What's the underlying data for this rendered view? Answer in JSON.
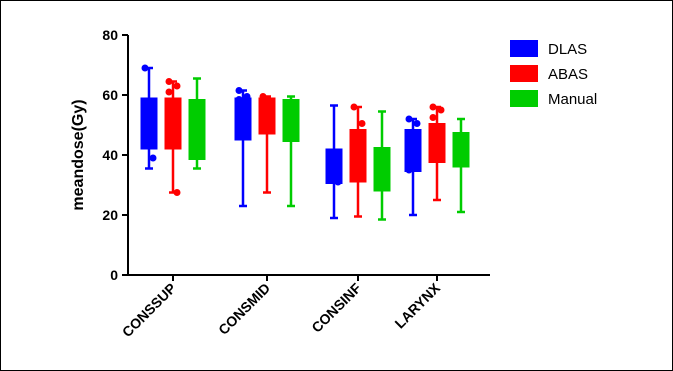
{
  "chart_data": {
    "type": "boxplot",
    "title": "",
    "xlabel": "",
    "ylabel": "meandose(Gy)",
    "ylim": [
      0,
      80
    ],
    "yticks": [
      0,
      20,
      40,
      60,
      80
    ],
    "grid": false,
    "legend_position": "top-right",
    "categories": [
      "CONSSUP",
      "CONSMID",
      "CONSINF",
      "LARYNX"
    ],
    "series": [
      {
        "name": "DLAS",
        "color": "#0000ff",
        "boxes": [
          {
            "min": 35.5,
            "q1": 42.0,
            "median": 50.0,
            "q3": 59.0,
            "max": 69.0,
            "outliers": [
              69.0,
              39.0
            ]
          },
          {
            "min": 23.0,
            "q1": 45.0,
            "median": 51.0,
            "q3": 59.0,
            "max": 61.5,
            "outliers": [
              61.5,
              59.5,
              58.5
            ]
          },
          {
            "min": 19.0,
            "q1": 30.5,
            "median": 35.0,
            "q3": 42.0,
            "max": 56.5,
            "outliers": [
              38.5,
              31.0
            ]
          },
          {
            "min": 20.0,
            "q1": 34.5,
            "median": 40.0,
            "q3": 48.5,
            "max": 52.0,
            "outliers": [
              52.0,
              50.5,
              35.0
            ]
          }
        ]
      },
      {
        "name": "ABAS",
        "color": "#ff0000",
        "boxes": [
          {
            "min": 27.5,
            "q1": 42.0,
            "median": 51.0,
            "q3": 59.0,
            "max": 64.5,
            "outliers": [
              64.5,
              63.0,
              61.0,
              27.5
            ]
          },
          {
            "min": 27.5,
            "q1": 47.0,
            "median": 53.0,
            "q3": 59.0,
            "max": 59.5,
            "outliers": [
              59.5
            ]
          },
          {
            "min": 19.5,
            "q1": 31.0,
            "median": 38.0,
            "q3": 48.5,
            "max": 56.0,
            "outliers": [
              56.0,
              50.5
            ]
          },
          {
            "min": 25.0,
            "q1": 37.5,
            "median": 44.0,
            "q3": 50.5,
            "max": 56.0,
            "outliers": [
              56.0,
              55.0,
              52.5
            ]
          }
        ]
      },
      {
        "name": "Manual",
        "color": "#00cc00",
        "boxes": [
          {
            "min": 35.5,
            "q1": 38.5,
            "median": 47.0,
            "q3": 58.5,
            "max": 65.5,
            "outliers": []
          },
          {
            "min": 23.0,
            "q1": 44.5,
            "median": 52.0,
            "q3": 58.5,
            "max": 59.5,
            "outliers": []
          },
          {
            "min": 18.5,
            "q1": 28.0,
            "median": 36.0,
            "q3": 42.5,
            "max": 54.5,
            "outliers": []
          },
          {
            "min": 21.0,
            "q1": 36.0,
            "median": 42.0,
            "q3": 47.5,
            "max": 52.0,
            "outliers": []
          }
        ]
      }
    ]
  }
}
